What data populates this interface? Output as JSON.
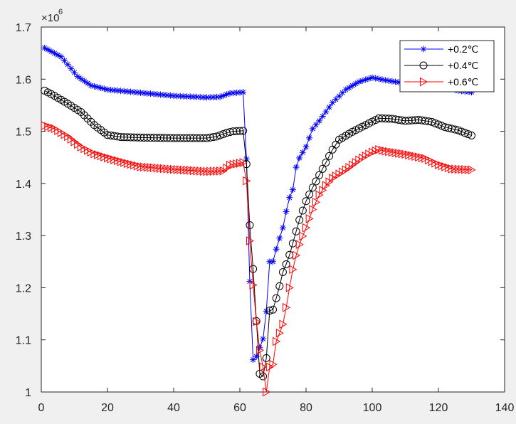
{
  "chart_data": {
    "type": "line",
    "title": "",
    "xlabel": "",
    "ylabel": "",
    "xlim": [
      0,
      140
    ],
    "ylim": [
      1.0,
      1.7
    ],
    "xticks": [
      0,
      20,
      40,
      60,
      80,
      100,
      120,
      140
    ],
    "yticks": [
      1,
      1.1,
      1.2,
      1.3,
      1.4,
      1.5,
      1.6,
      1.7
    ],
    "ytick_labels": [
      "1",
      "1.1",
      "1.2",
      "1.3",
      "1.4",
      "1.5",
      "1.6",
      "1.7"
    ],
    "y_exponent_base": "×10",
    "y_exponent_power": "6",
    "grid": false,
    "legend_location": "top-right",
    "series": [
      {
        "name": "+0.2℃",
        "color": "#0000ff",
        "marker": "asterisk",
        "anchors": [
          [
            1,
            1.66
          ],
          [
            6,
            1.643
          ],
          [
            8,
            1.628
          ],
          [
            11,
            1.605
          ],
          [
            15,
            1.588
          ],
          [
            20,
            1.58
          ],
          [
            30,
            1.574
          ],
          [
            40,
            1.568
          ],
          [
            50,
            1.565
          ],
          [
            54,
            1.566
          ],
          [
            57,
            1.573
          ],
          [
            61,
            1.575
          ],
          [
            62,
            1.447
          ],
          [
            63,
            1.212
          ],
          [
            64,
            1.062
          ],
          [
            65,
            1.068
          ],
          [
            66,
            1.085
          ],
          [
            67,
            1.102
          ],
          [
            68,
            1.155
          ],
          [
            69,
            1.25
          ],
          [
            70,
            1.25
          ],
          [
            71,
            1.274
          ],
          [
            72,
            1.295
          ],
          [
            73,
            1.315
          ],
          [
            74,
            1.346
          ],
          [
            75,
            1.373
          ],
          [
            76,
            1.388
          ],
          [
            77,
            1.431
          ],
          [
            78,
            1.449
          ],
          [
            80,
            1.47
          ],
          [
            82,
            1.505
          ],
          [
            84,
            1.52
          ],
          [
            88,
            1.555
          ],
          [
            92,
            1.58
          ],
          [
            96,
            1.595
          ],
          [
            100,
            1.603
          ],
          [
            104,
            1.598
          ],
          [
            110,
            1.592
          ],
          [
            116,
            1.59
          ],
          [
            122,
            1.585
          ],
          [
            126,
            1.578
          ],
          [
            130,
            1.575
          ]
        ]
      },
      {
        "name": "+0.4℃",
        "color": "#000000",
        "marker": "circle",
        "anchors": [
          [
            1,
            1.578
          ],
          [
            4,
            1.568
          ],
          [
            8,
            1.553
          ],
          [
            12,
            1.537
          ],
          [
            16,
            1.512
          ],
          [
            20,
            1.493
          ],
          [
            24,
            1.489
          ],
          [
            30,
            1.488
          ],
          [
            40,
            1.487
          ],
          [
            50,
            1.487
          ],
          [
            53,
            1.49
          ],
          [
            56,
            1.497
          ],
          [
            58,
            1.5
          ],
          [
            61,
            1.501
          ],
          [
            62,
            1.437
          ],
          [
            63,
            1.32
          ],
          [
            64,
            1.236
          ],
          [
            65,
            1.136
          ],
          [
            66,
            1.035
          ],
          [
            67,
            1.03
          ],
          [
            68,
            1.065
          ],
          [
            69,
            1.156
          ],
          [
            70,
            1.158
          ],
          [
            71,
            1.18
          ],
          [
            72,
            1.203
          ],
          [
            73,
            1.23
          ],
          [
            74,
            1.245
          ],
          [
            75,
            1.263
          ],
          [
            76,
            1.285
          ],
          [
            77,
            1.308
          ],
          [
            78,
            1.33
          ],
          [
            80,
            1.366
          ],
          [
            82,
            1.392
          ],
          [
            84,
            1.416
          ],
          [
            86,
            1.44
          ],
          [
            88,
            1.465
          ],
          [
            90,
            1.484
          ],
          [
            94,
            1.499
          ],
          [
            98,
            1.512
          ],
          [
            102,
            1.525
          ],
          [
            106,
            1.524
          ],
          [
            110,
            1.52
          ],
          [
            114,
            1.522
          ],
          [
            118,
            1.518
          ],
          [
            122,
            1.508
          ],
          [
            126,
            1.502
          ],
          [
            130,
            1.492
          ]
        ]
      },
      {
        "name": "+0.6℃",
        "color": "#ff0000",
        "marker": "triangle-right",
        "anchors": [
          [
            1,
            1.511
          ],
          [
            4,
            1.505
          ],
          [
            8,
            1.49
          ],
          [
            12,
            1.47
          ],
          [
            16,
            1.457
          ],
          [
            20,
            1.449
          ],
          [
            25,
            1.44
          ],
          [
            30,
            1.432
          ],
          [
            40,
            1.427
          ],
          [
            50,
            1.423
          ],
          [
            55,
            1.424
          ],
          [
            57,
            1.435
          ],
          [
            61,
            1.44
          ],
          [
            62,
            1.405
          ],
          [
            63,
            1.29
          ],
          [
            64,
            1.205
          ],
          [
            65,
            1.135
          ],
          [
            66,
            1.08
          ],
          [
            67,
            1.048
          ],
          [
            68,
            1.0
          ],
          [
            69,
            1.048
          ],
          [
            70,
            1.053
          ],
          [
            71,
            1.097
          ],
          [
            72,
            1.113
          ],
          [
            73,
            1.13
          ],
          [
            74,
            1.162
          ],
          [
            75,
            1.2
          ],
          [
            76,
            1.235
          ],
          [
            77,
            1.262
          ],
          [
            78,
            1.283
          ],
          [
            80,
            1.315
          ],
          [
            82,
            1.35
          ],
          [
            84,
            1.378
          ],
          [
            86,
            1.396
          ],
          [
            88,
            1.41
          ],
          [
            92,
            1.426
          ],
          [
            96,
            1.445
          ],
          [
            100,
            1.46
          ],
          [
            102,
            1.465
          ],
          [
            104,
            1.462
          ],
          [
            110,
            1.456
          ],
          [
            116,
            1.448
          ],
          [
            120,
            1.436
          ],
          [
            124,
            1.428
          ],
          [
            130,
            1.426
          ]
        ]
      }
    ]
  }
}
